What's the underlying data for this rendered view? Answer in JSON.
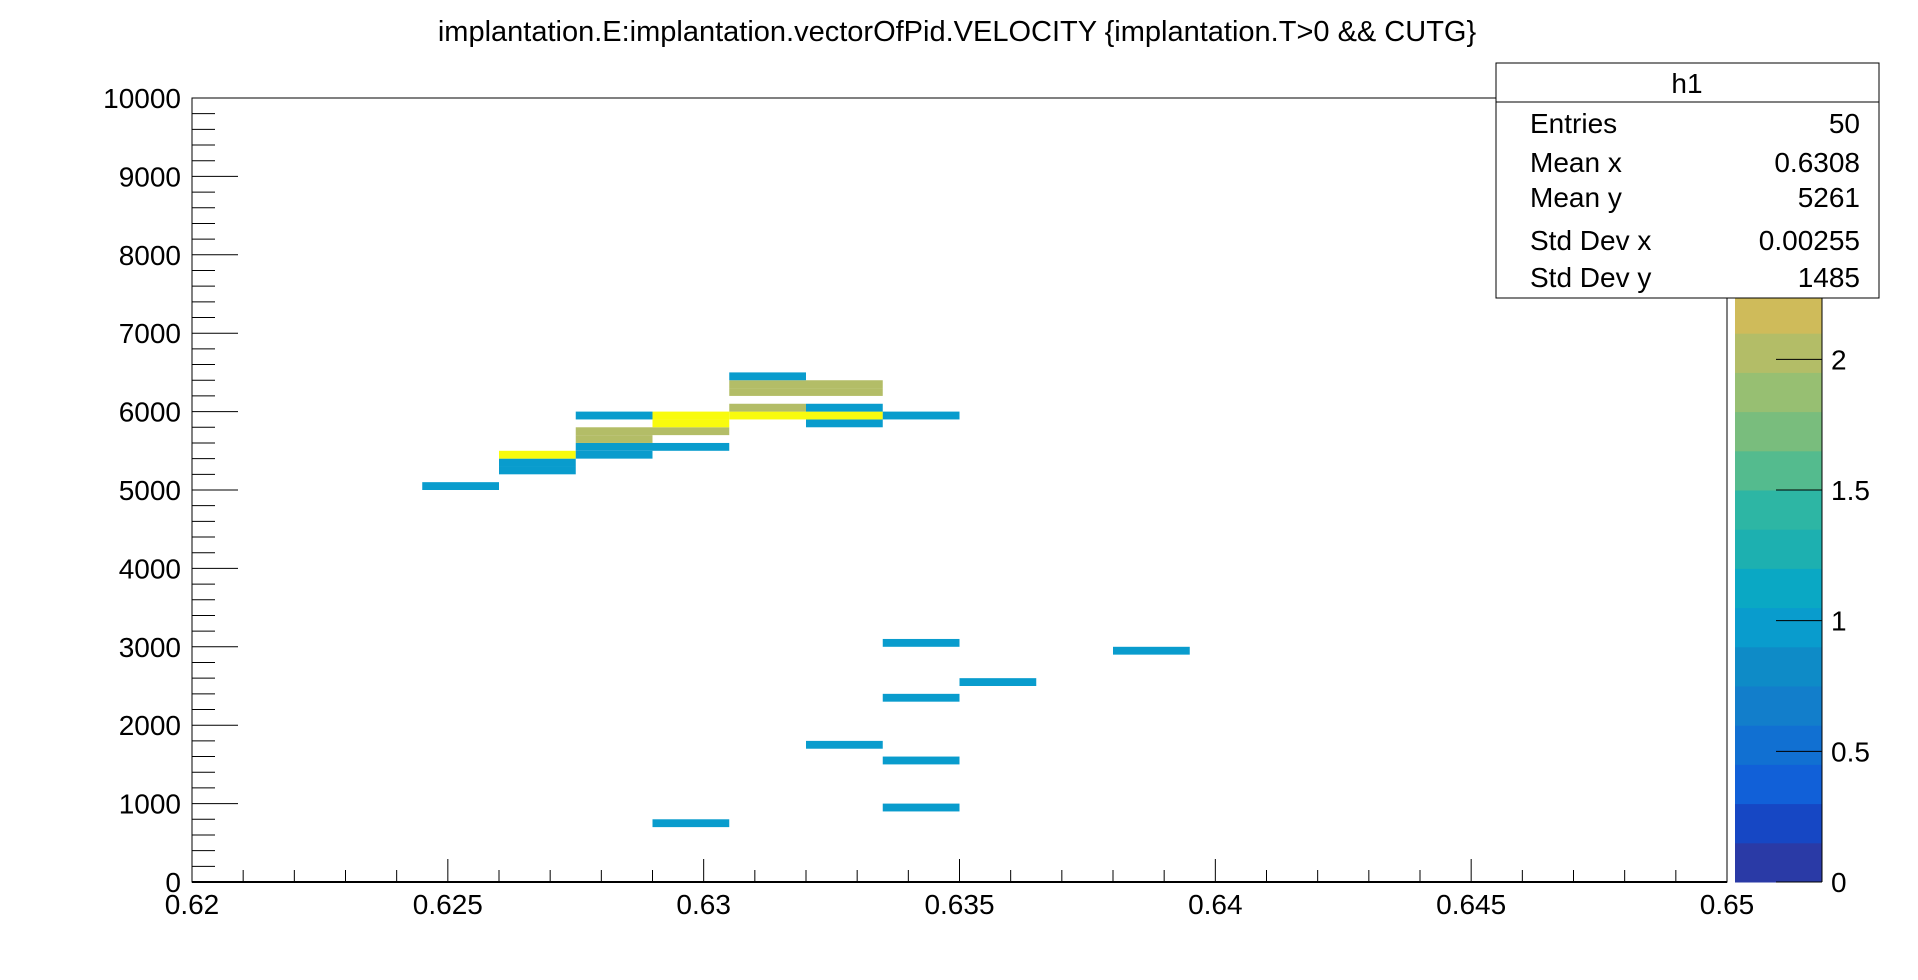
{
  "chart_data": {
    "type": "heatmap",
    "title": "implantation.E:implantation.vectorOfPid.VELOCITY {implantation.T>0 && CUTG}",
    "xlabel": "",
    "ylabel": "",
    "xlim": [
      0.62,
      0.65
    ],
    "ylim": [
      0,
      10000
    ],
    "zlim": [
      0,
      3
    ],
    "x_bin_width": 0.0015,
    "y_bin_width": 100,
    "x_ticks": [
      "0.62",
      "0.625",
      "0.63",
      "0.635",
      "0.64",
      "0.645",
      "0.65"
    ],
    "x_tick_values": [
      0.62,
      0.625,
      0.63,
      0.635,
      0.64,
      0.645,
      0.65
    ],
    "y_ticks": [
      "0",
      "1000",
      "2000",
      "3000",
      "4000",
      "5000",
      "6000",
      "7000",
      "8000",
      "9000",
      "10000"
    ],
    "y_tick_values": [
      0,
      1000,
      2000,
      3000,
      4000,
      5000,
      6000,
      7000,
      8000,
      9000,
      10000
    ],
    "z_ticks": [
      "0",
      "0.5",
      "1",
      "1.5",
      "2"
    ],
    "z_tick_values": [
      0,
      0.5,
      1,
      1.5,
      2
    ],
    "grid": false,
    "cells": [
      {
        "x0": 0.6245,
        "y0": 5000,
        "z": 1
      },
      {
        "x0": 0.626,
        "y0": 5200,
        "z": 1
      },
      {
        "x0": 0.626,
        "y0": 5300,
        "z": 1
      },
      {
        "x0": 0.626,
        "y0": 5400,
        "z": 3
      },
      {
        "x0": 0.6275,
        "y0": 5400,
        "z": 1
      },
      {
        "x0": 0.6275,
        "y0": 5500,
        "z": 1
      },
      {
        "x0": 0.6275,
        "y0": 5600,
        "z": 2
      },
      {
        "x0": 0.6275,
        "y0": 5700,
        "z": 2
      },
      {
        "x0": 0.6275,
        "y0": 5900,
        "z": 1
      },
      {
        "x0": 0.629,
        "y0": 700,
        "z": 1
      },
      {
        "x0": 0.629,
        "y0": 5500,
        "z": 1
      },
      {
        "x0": 0.629,
        "y0": 5700,
        "z": 2
      },
      {
        "x0": 0.629,
        "y0": 5800,
        "z": 3
      },
      {
        "x0": 0.629,
        "y0": 5900,
        "z": 3
      },
      {
        "x0": 0.6305,
        "y0": 5900,
        "z": 3
      },
      {
        "x0": 0.6305,
        "y0": 6000,
        "z": 2
      },
      {
        "x0": 0.6305,
        "y0": 6200,
        "z": 2
      },
      {
        "x0": 0.6305,
        "y0": 6300,
        "z": 2
      },
      {
        "x0": 0.6305,
        "y0": 6400,
        "z": 1
      },
      {
        "x0": 0.632,
        "y0": 1700,
        "z": 1
      },
      {
        "x0": 0.632,
        "y0": 5800,
        "z": 1
      },
      {
        "x0": 0.632,
        "y0": 5900,
        "z": 3
      },
      {
        "x0": 0.632,
        "y0": 6000,
        "z": 1
      },
      {
        "x0": 0.632,
        "y0": 6200,
        "z": 2
      },
      {
        "x0": 0.632,
        "y0": 6300,
        "z": 2
      },
      {
        "x0": 0.6335,
        "y0": 900,
        "z": 1
      },
      {
        "x0": 0.6335,
        "y0": 1500,
        "z": 1
      },
      {
        "x0": 0.6335,
        "y0": 2300,
        "z": 1
      },
      {
        "x0": 0.6335,
        "y0": 3000,
        "z": 1
      },
      {
        "x0": 0.6335,
        "y0": 5900,
        "z": 1
      },
      {
        "x0": 0.635,
        "y0": 2500,
        "z": 1
      },
      {
        "x0": 0.638,
        "y0": 2900,
        "z": 1
      }
    ],
    "palette": [
      "#2a3aa6",
      "#1647c4",
      "#1160d8",
      "#1170d2",
      "#127ecb",
      "#0e8bc7",
      "#099ccd",
      "#0aa8c4",
      "#1db0b0",
      "#2db6a4",
      "#54bb8e",
      "#79bd7d",
      "#97bf72",
      "#b3bd67",
      "#cfbb5a",
      "#e2b94c",
      "#edc13c",
      "#f3d02c",
      "#f7e31c",
      "#f9fb0e"
    ],
    "stats": {
      "name": "h1",
      "rows": [
        {
          "label": "Entries",
          "value": "50"
        },
        {
          "label": "Mean x",
          "value": "0.6308"
        },
        {
          "label": "Mean y",
          "value": "5261"
        },
        {
          "label": "Std Dev x",
          "value": "0.00255"
        },
        {
          "label": "Std Dev y",
          "value": "1485"
        }
      ]
    }
  }
}
